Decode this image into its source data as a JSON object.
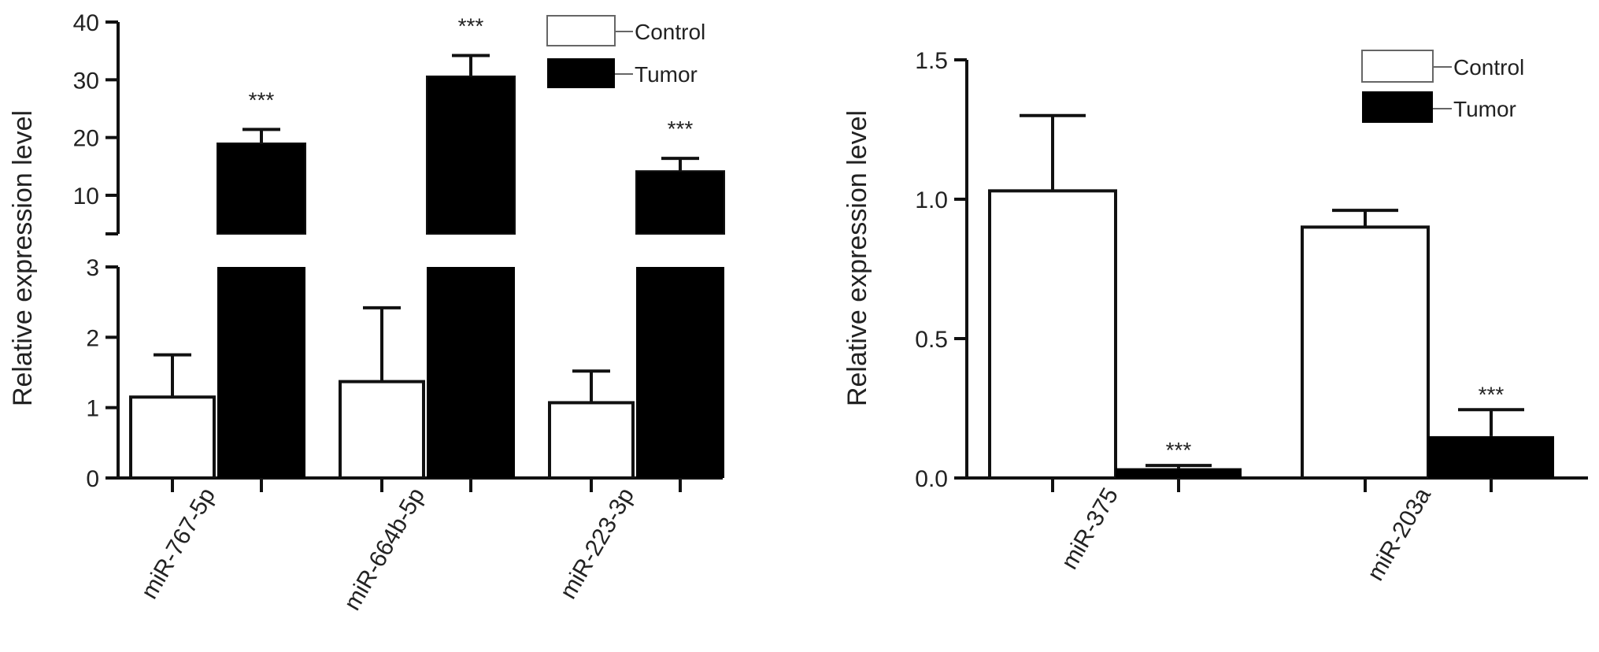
{
  "chart_data": [
    {
      "type": "bar",
      "ylabel": "Relative expression level",
      "categories": [
        "miR-767-5p",
        "miR-664b-5p",
        "miR-223-3p"
      ],
      "series": [
        {
          "name": "Control",
          "values": [
            1.15,
            1.37,
            1.07
          ],
          "errors": [
            0.6,
            1.05,
            0.45
          ]
        },
        {
          "name": "Tumor",
          "values": [
            19,
            30.6,
            14.2
          ],
          "errors": [
            2.4,
            3.6,
            2.2
          ]
        }
      ],
      "significance": [
        "***",
        "***",
        "***"
      ],
      "y_axis_break": {
        "lower_ylim": [
          0,
          3
        ],
        "upper_ylim": [
          3,
          40
        ]
      },
      "yticks_lower": [
        0,
        1,
        2,
        3
      ],
      "yticks_upper": [
        10,
        20,
        30,
        40
      ],
      "legend_position": "top-right",
      "grid": false
    },
    {
      "type": "bar",
      "ylabel": "Relative expression level",
      "categories": [
        "miR-375",
        "miR-203a"
      ],
      "series": [
        {
          "name": "Control",
          "values": [
            1.03,
            0.9
          ],
          "errors": [
            0.27,
            0.06
          ]
        },
        {
          "name": "Tumor",
          "values": [
            0.035,
            0.15
          ],
          "errors": [
            0.01,
            0.095
          ]
        }
      ],
      "significance": [
        "***",
        "***"
      ],
      "ylim": [
        0,
        1.5
      ],
      "yticks": [
        0.0,
        0.5,
        1.0,
        1.5
      ],
      "ytick_labels": [
        "0.0",
        "0.5",
        "1.0",
        "1.5"
      ],
      "legend_position": "top-right",
      "grid": false
    }
  ]
}
